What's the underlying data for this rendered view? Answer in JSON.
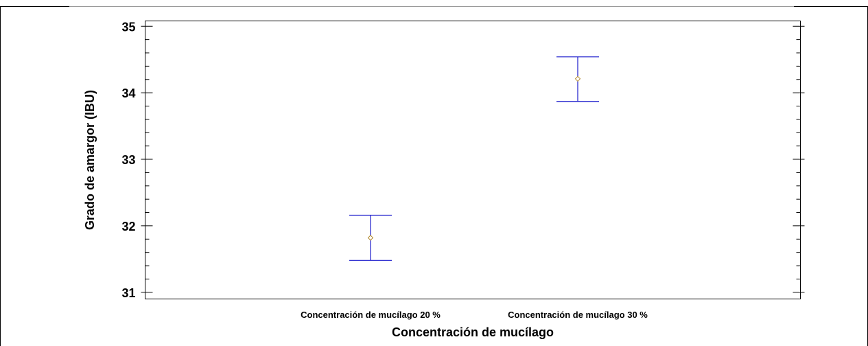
{
  "chart_data": {
    "type": "scatter",
    "title": "",
    "xlabel": "Concentración de mucílago",
    "ylabel": "Grado de amargor (IBU)",
    "categories": [
      "Concentración de mucílago 20 %",
      "Concentración de mucílago 30 %"
    ],
    "series": [
      {
        "values": [
          31.82,
          34.21
        ],
        "lower": [
          31.48,
          33.87
        ],
        "upper": [
          32.16,
          34.54
        ]
      }
    ],
    "ylim": [
      30.9,
      35.08
    ],
    "yticks": [
      "31",
      "32",
      "33",
      "34",
      "35"
    ],
    "grid": false,
    "colors": {
      "errorbar": "#1a1acc",
      "marker": "#b38a2e",
      "axis": "#000000"
    }
  }
}
